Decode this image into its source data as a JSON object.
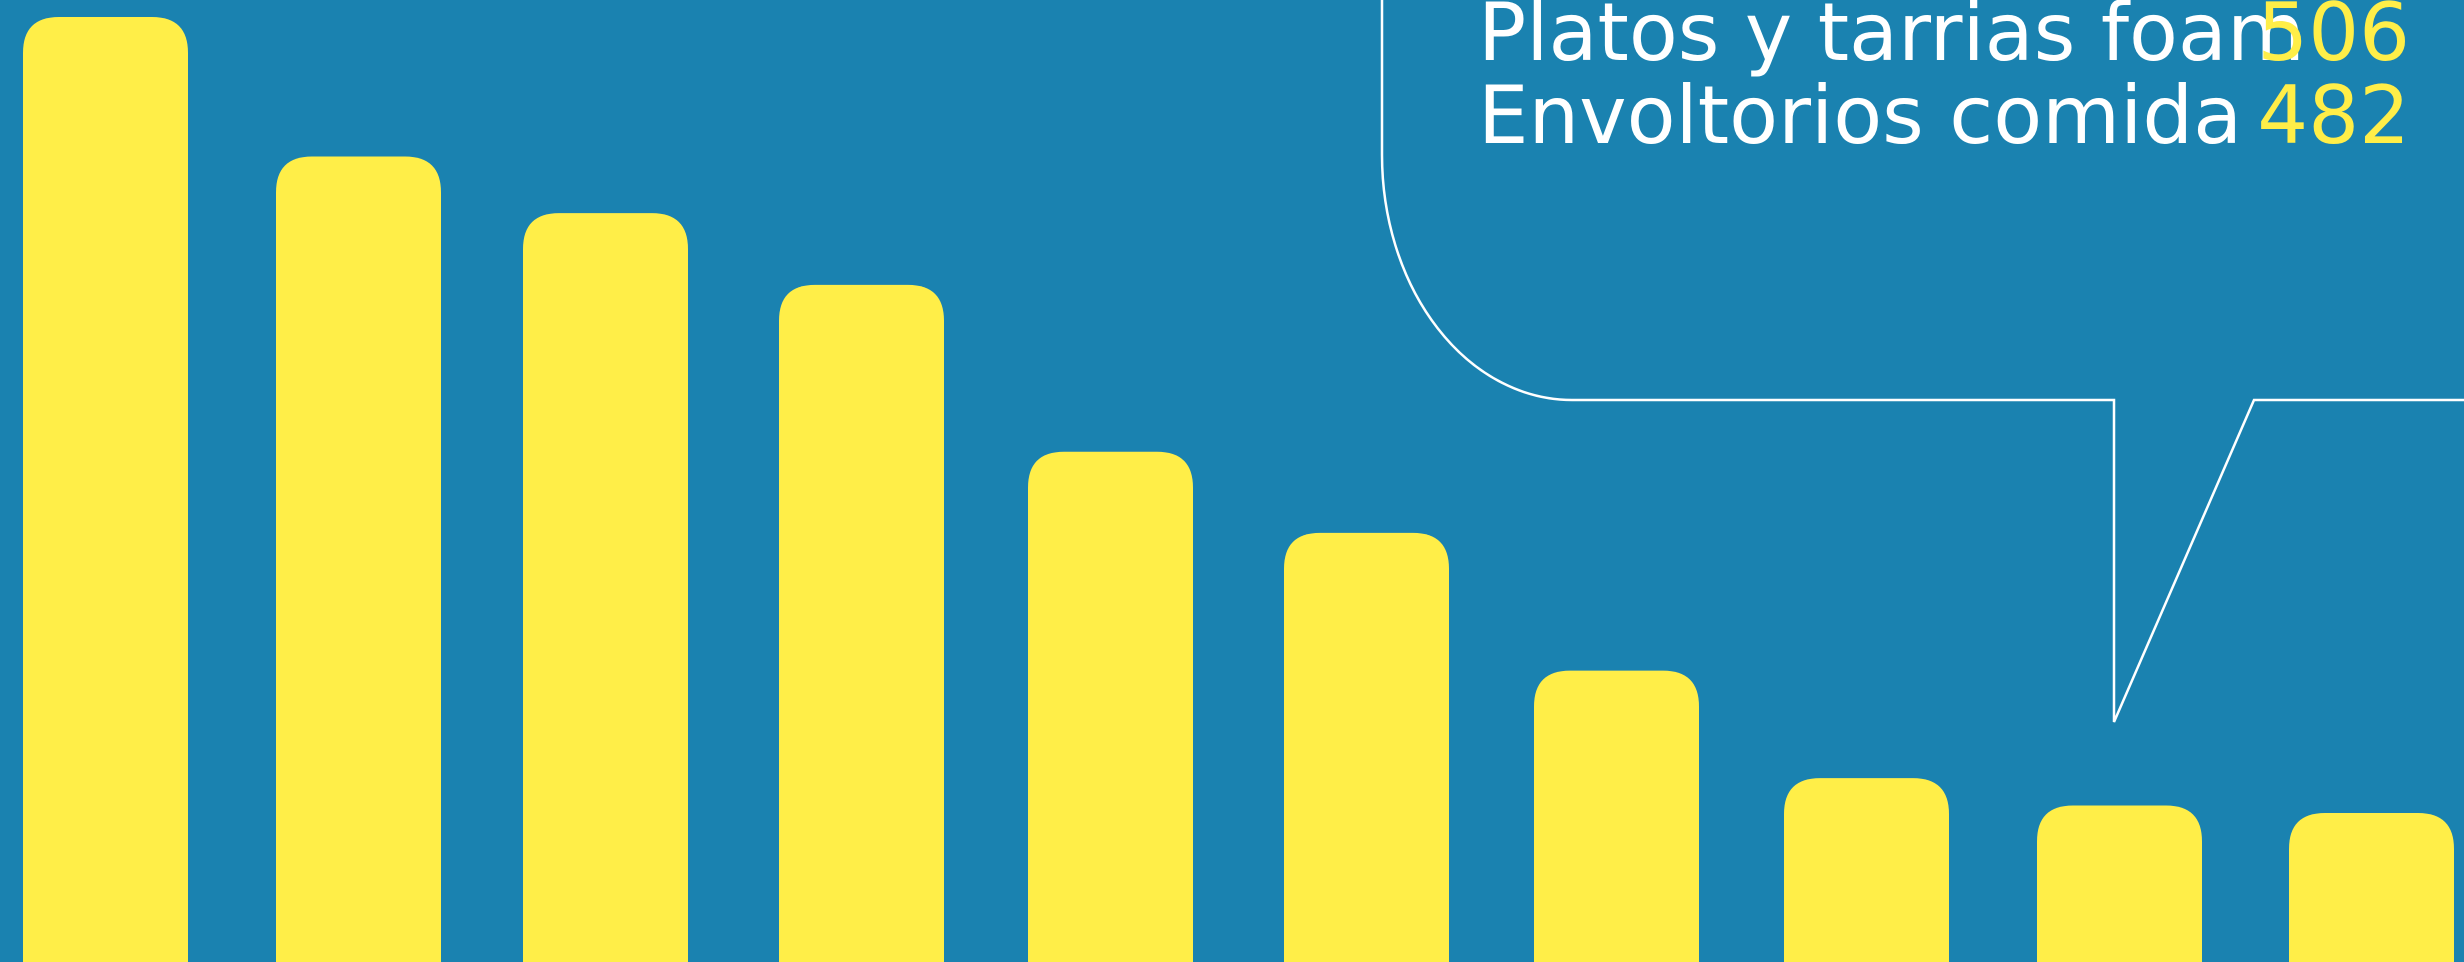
{
  "colors": {
    "background": "#1a82b0",
    "bar": "#ffee48",
    "label_text": "#ffffff",
    "value_text": "#ffee48",
    "callout_stroke": "#ffffff"
  },
  "callout": {
    "rows": [
      {
        "label": "Platos y tarrias foam",
        "value": "506"
      },
      {
        "label": "Envoltorios comida",
        "value": "482"
      }
    ]
  },
  "chart_data": {
    "type": "bar",
    "grid": false,
    "legend": "none",
    "bar_corners": "rounded-top",
    "values": [
      1002,
      854,
      794,
      718,
      541,
      455,
      309,
      195,
      166,
      158
    ],
    "ylim": [
      0,
      1020
    ],
    "annotated_values": [
      506,
      482
    ]
  }
}
